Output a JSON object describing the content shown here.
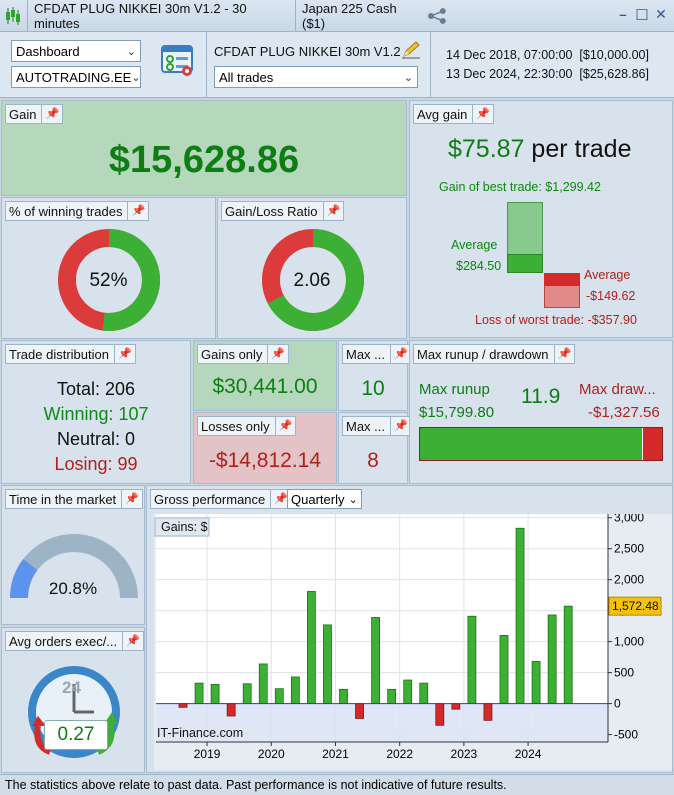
{
  "titlebar": {
    "strategy": "CFDAT PLUG NIKKEI 30m V1.2 - 30 minutes",
    "instrument": "Japan 225 Cash ($1)",
    "minimize": "–",
    "maximize": "☐",
    "close": "✕"
  },
  "toolbar": {
    "view_select": "Dashboard",
    "account_select": "AUTOTRADING.EE",
    "strategy_name": "CFDAT PLUG NIKKEI 30m V1.2",
    "trades_select": "All trades",
    "start": "14 Dec 2018, 07:00:00  [$10,000.00]",
    "end": "13 Dec 2024, 22:30:00  [$25,628.86]"
  },
  "gain": {
    "title": "Gain",
    "value": "$15,628.86"
  },
  "avg_gain": {
    "title": "Avg gain",
    "value": "$75.87",
    "suffix": "per trade",
    "best_label": "Gain of best trade: $1,299.42",
    "avg_pos_label": "Average",
    "avg_pos_value": "$284.50",
    "avg_neg_label": "Average",
    "avg_neg_value": "-$149.62",
    "worst_label": "Loss of worst trade: -$357.90"
  },
  "winning_pct": {
    "title": "% of winning trades",
    "value": "52%",
    "fraction": 0.52
  },
  "gain_loss": {
    "title": "Gain/Loss Ratio",
    "value": "2.06",
    "fraction": 0.673
  },
  "distribution": {
    "title": "Trade distribution",
    "total": "Total: 206",
    "winning": "Winning: 107",
    "neutral": "Neutral: 0",
    "losing": "Losing: 99"
  },
  "gains_only": {
    "title": "Gains only",
    "value": "$30,441.00"
  },
  "losses_only": {
    "title": "Losses only",
    "value": "-$14,812.14"
  },
  "max_wins": {
    "title": "Max ...",
    "value": "10"
  },
  "max_losses": {
    "title": "Max ...",
    "value": "8"
  },
  "runup": {
    "title": "Max runup / drawdown",
    "runup_label": "Max runup",
    "runup_value": "$15,799.80",
    "ratio": "11.9",
    "drawdown_label": "Max draw...",
    "drawdown_value": "-$1,327.56",
    "runup_fraction": 0.922
  },
  "time_market": {
    "title": "Time in the market",
    "value": "20.8%",
    "fraction": 0.208
  },
  "avg_orders": {
    "title": "Avg orders exec/...",
    "clock_label": "24",
    "value": "0.27"
  },
  "gross": {
    "title": "Gross performance",
    "period_select": "Quarterly"
  },
  "chart_data": {
    "type": "bar",
    "title": "Gains: $",
    "watermark": "IT-Finance.com",
    "x_ticks": [
      "2019",
      "2020",
      "2021",
      "2022",
      "2023",
      "2024"
    ],
    "y_ticks": [
      "3,000",
      "2,500",
      "2,000",
      "1,500",
      "1,000",
      "500",
      "0",
      "-500"
    ],
    "ylim": [
      -620,
      3060
    ],
    "last_value_label": "1,572.48",
    "categories": [
      "2018-Q4",
      "2019-Q1",
      "2019-Q2",
      "2019-Q3",
      "2019-Q4",
      "2020-Q1",
      "2020-Q2",
      "2020-Q3",
      "2020-Q4",
      "2021-Q1",
      "2021-Q2",
      "2021-Q3",
      "2021-Q4",
      "2022-Q1",
      "2022-Q2",
      "2022-Q3",
      "2022-Q4",
      "2023-Q1",
      "2023-Q2",
      "2023-Q3",
      "2023-Q4",
      "2024-Q1",
      "2024-Q2",
      "2024-Q3",
      "2024-Q4"
    ],
    "values": [
      -60,
      330,
      310,
      -200,
      320,
      640,
      240,
      430,
      1810,
      1270,
      230,
      -240,
      1390,
      230,
      380,
      330,
      -350,
      -90,
      1410,
      -270,
      1100,
      2830,
      680,
      1430,
      1572.48
    ],
    "positive_color": "#3cb034",
    "negative_color": "#d32a2a"
  },
  "footer": {
    "text": "The statistics above relate to past data. Past performance is not indicative of future results."
  }
}
